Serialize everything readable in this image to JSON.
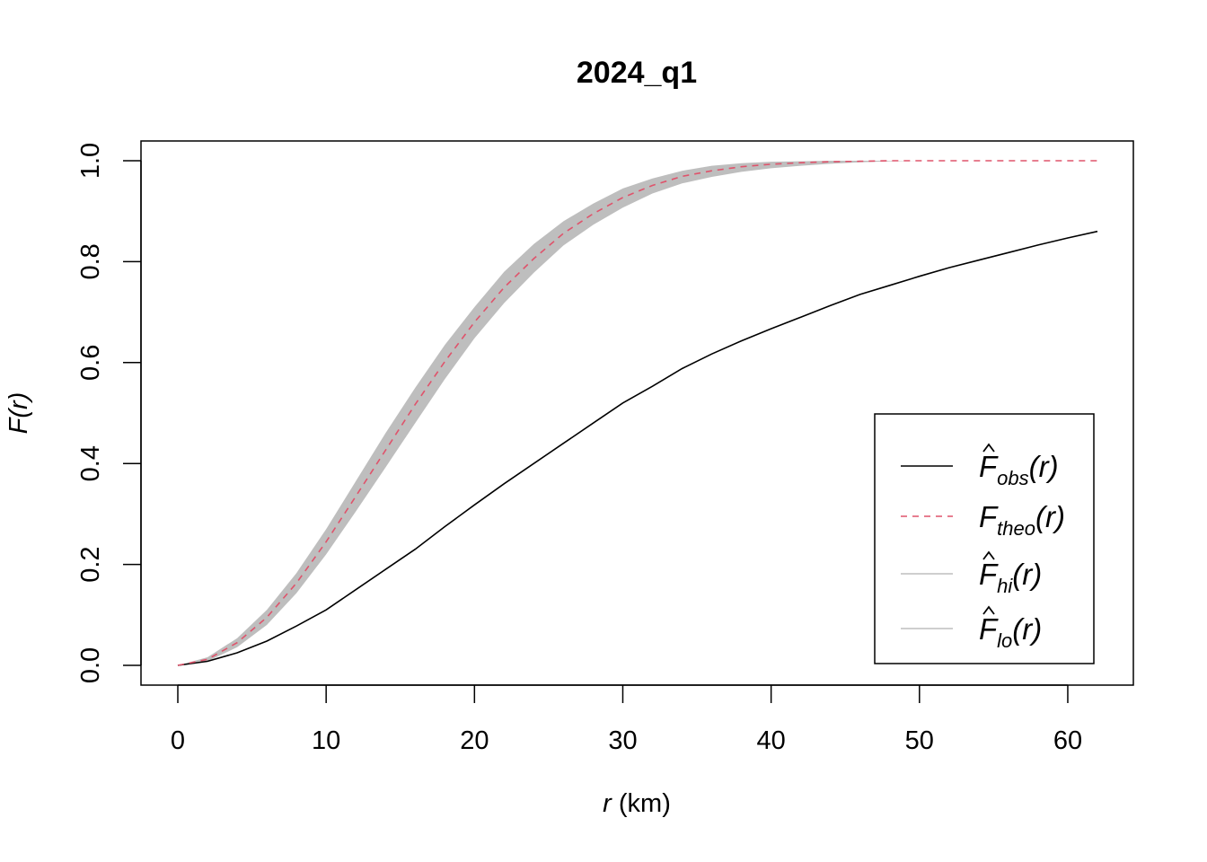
{
  "chart_data": {
    "type": "line",
    "title": "2024_q1",
    "xlabel_var": "r",
    "xlabel_unit": "(km)",
    "ylabel": "F(r)",
    "xlim": [
      0,
      62
    ],
    "ylim": [
      0,
      1
    ],
    "x_ticks": [
      "0",
      "10",
      "20",
      "30",
      "40",
      "50",
      "60"
    ],
    "y_ticks": [
      "0.0",
      "0.2",
      "0.4",
      "0.6",
      "0.8",
      "1.0"
    ],
    "legend_position": "bottom-right",
    "legend": [
      {
        "base": "F",
        "hat": true,
        "sub": "obs",
        "arg": "(r)",
        "color": "#000000",
        "dash": false
      },
      {
        "base": "F",
        "hat": false,
        "sub": "theo",
        "arg": "(r)",
        "color": "#DF536B",
        "dash": true
      },
      {
        "base": "F",
        "hat": true,
        "sub": "hi",
        "arg": "(r)",
        "color": "#BEBEBE",
        "dash": false
      },
      {
        "base": "F",
        "hat": true,
        "sub": "lo",
        "arg": "(r)",
        "color": "#BEBEBE",
        "dash": false
      }
    ],
    "x": [
      0,
      2,
      4,
      6,
      8,
      10,
      12,
      14,
      16,
      18,
      20,
      22,
      24,
      26,
      28,
      30,
      32,
      34,
      36,
      38,
      40,
      42,
      44,
      46,
      48,
      50,
      52,
      54,
      56,
      58,
      60,
      62
    ],
    "series": [
      {
        "name": "obs",
        "color": "#000000",
        "values": [
          0,
          0.008,
          0.025,
          0.048,
          0.078,
          0.11,
          0.15,
          0.19,
          0.23,
          0.275,
          0.318,
          0.36,
          0.4,
          0.44,
          0.48,
          0.52,
          0.553,
          0.588,
          0.617,
          0.643,
          0.667,
          0.69,
          0.713,
          0.735,
          0.753,
          0.771,
          0.788,
          0.803,
          0.818,
          0.833,
          0.847,
          0.86
        ]
      },
      {
        "name": "theo",
        "color": "#DF536B",
        "values": [
          0,
          0.012,
          0.045,
          0.095,
          0.163,
          0.245,
          0.335,
          0.426,
          0.517,
          0.602,
          0.68,
          0.749,
          0.806,
          0.856,
          0.895,
          0.927,
          0.951,
          0.969,
          0.98,
          0.988,
          0.993,
          0.996,
          0.998,
          0.999,
          1.0,
          1.0,
          1.0,
          1.0,
          1.0,
          1.0,
          1.0,
          1.0
        ]
      },
      {
        "name": "hi",
        "color": "#BEBEBE",
        "values": [
          0,
          0.016,
          0.054,
          0.11,
          0.183,
          0.27,
          0.365,
          0.46,
          0.55,
          0.635,
          0.71,
          0.78,
          0.835,
          0.88,
          0.915,
          0.945,
          0.965,
          0.98,
          0.99,
          0.995,
          0.998,
          0.999,
          1.0,
          1.0,
          1.0,
          1.0,
          1.0,
          1.0,
          1.0,
          1.0,
          1.0,
          1.0
        ]
      },
      {
        "name": "lo",
        "color": "#BEBEBE",
        "values": [
          0,
          0.008,
          0.036,
          0.08,
          0.143,
          0.22,
          0.305,
          0.392,
          0.48,
          0.567,
          0.648,
          0.718,
          0.778,
          0.832,
          0.873,
          0.907,
          0.935,
          0.955,
          0.968,
          0.978,
          0.985,
          0.99,
          0.994,
          0.997,
          0.999,
          1.0,
          1.0,
          1.0,
          1.0,
          1.0,
          1.0,
          1.0
        ]
      }
    ]
  }
}
